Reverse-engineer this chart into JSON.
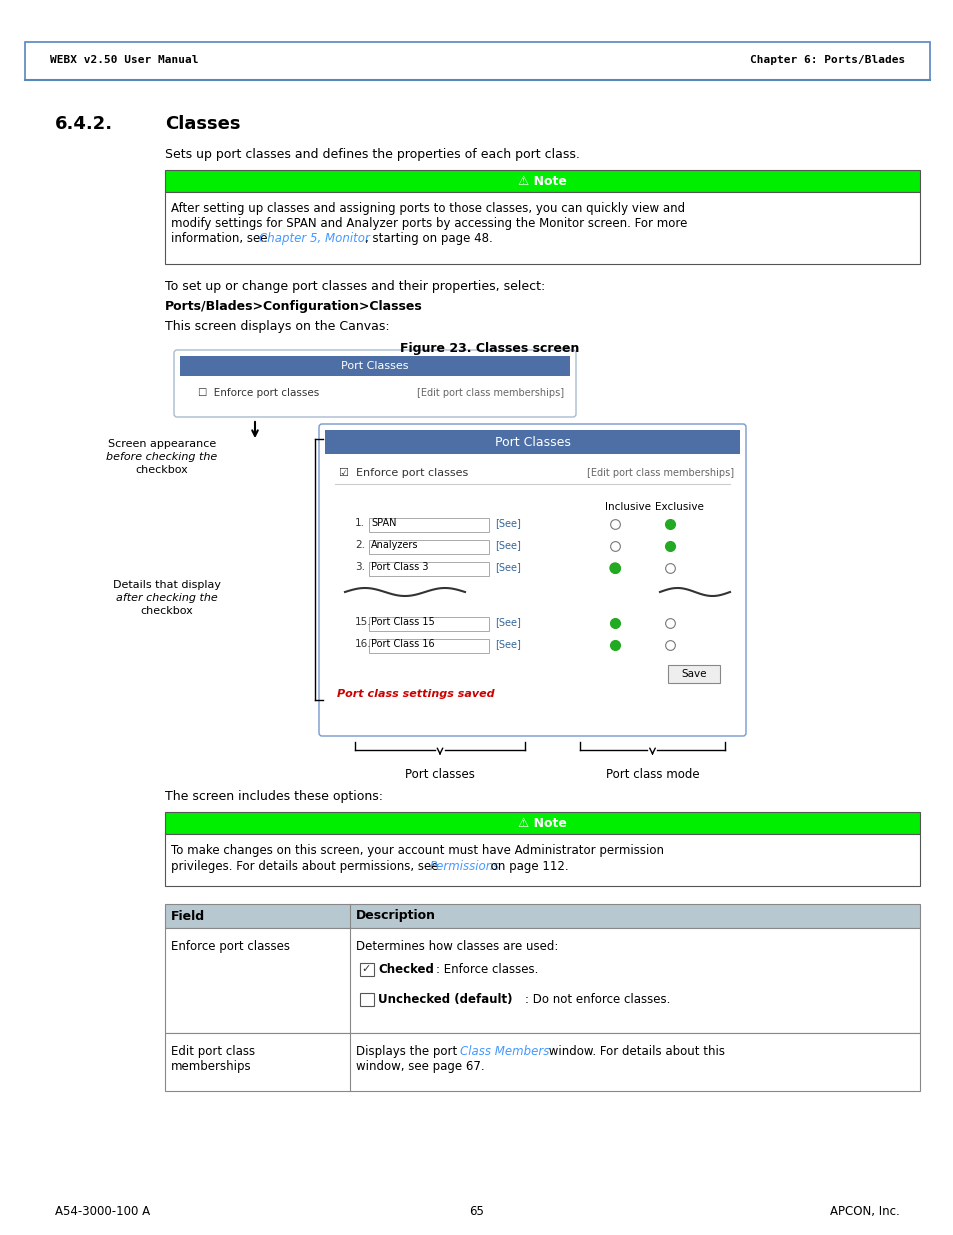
{
  "page_title_left": "WEBX v2.50 User Manual",
  "page_title_right": "Chapter 6: Ports/Blades",
  "section": "6.4.2.",
  "section_title": "Classes",
  "intro_text": "Sets up port classes and defines the properties of each port class.",
  "note_header": "⚠ Note",
  "note1_line1": "After setting up classes and assigning ports to those classes, you can quickly view and",
  "note1_line2": "modify settings for SPAN and Analyzer ports by accessing the Monitor screen. For more",
  "note1_line3_pre": "information, see ",
  "note1_line3_link": "Chapter 5, Monitor",
  "note1_line3_post": ", starting on page 48.",
  "setup_text": "To set up or change port classes and their properties, select:",
  "nav_path": "Ports/Blades>Configuration>Classes",
  "canvas_text": "This screen displays on the Canvas:",
  "figure_caption": "Figure 23. Classes screen",
  "screen_before_label1": "Screen appearance",
  "screen_before_label2": "before checking the",
  "screen_before_label3": "checkbox",
  "screen_after_label1": "Details that display",
  "screen_after_label2": "after checking the",
  "screen_after_label3": "checkbox",
  "port_classes_label": "Port classes",
  "port_class_mode_label": "Port class mode",
  "screen_includes": "The screen includes these options:",
  "note2_line1": "To make changes on this screen, your account must have Administrator permission",
  "note2_line2_pre": "privileges. For details about permissions, see ",
  "note2_line2_link": "Permissions",
  "note2_line2_post": " on page 112.",
  "table_header_field": "Field",
  "table_header_desc": "Description",
  "table_row1_field": "Enforce port classes",
  "table_row1_desc": "Determines how classes are used:",
  "table_row1_checked_bold": "Checked",
  "table_row1_checked_rest": ": Enforce classes.",
  "table_row1_unchecked_bold": "Unchecked (default)",
  "table_row1_unchecked_rest": ": Do not enforce classes.",
  "table_row2_field_line1": "Edit port class",
  "table_row2_field_line2": "memberships",
  "table_row2_desc_pre": "Displays the port ",
  "table_row2_desc_link": "Class Members",
  "table_row2_desc_post": " window. For details about this",
  "table_row2_desc_line2": "window, see page 67.",
  "footer_left": "A54-3000-100 A",
  "footer_center": "65",
  "footer_right": "APCON, Inc.",
  "bg_color": "#ffffff",
  "header_blue": "#4d6fa5",
  "note_green": "#00ee00",
  "link_color": "#4499ff",
  "table_header_bg": "#b8c8d0",
  "red_text": "#cc0000"
}
